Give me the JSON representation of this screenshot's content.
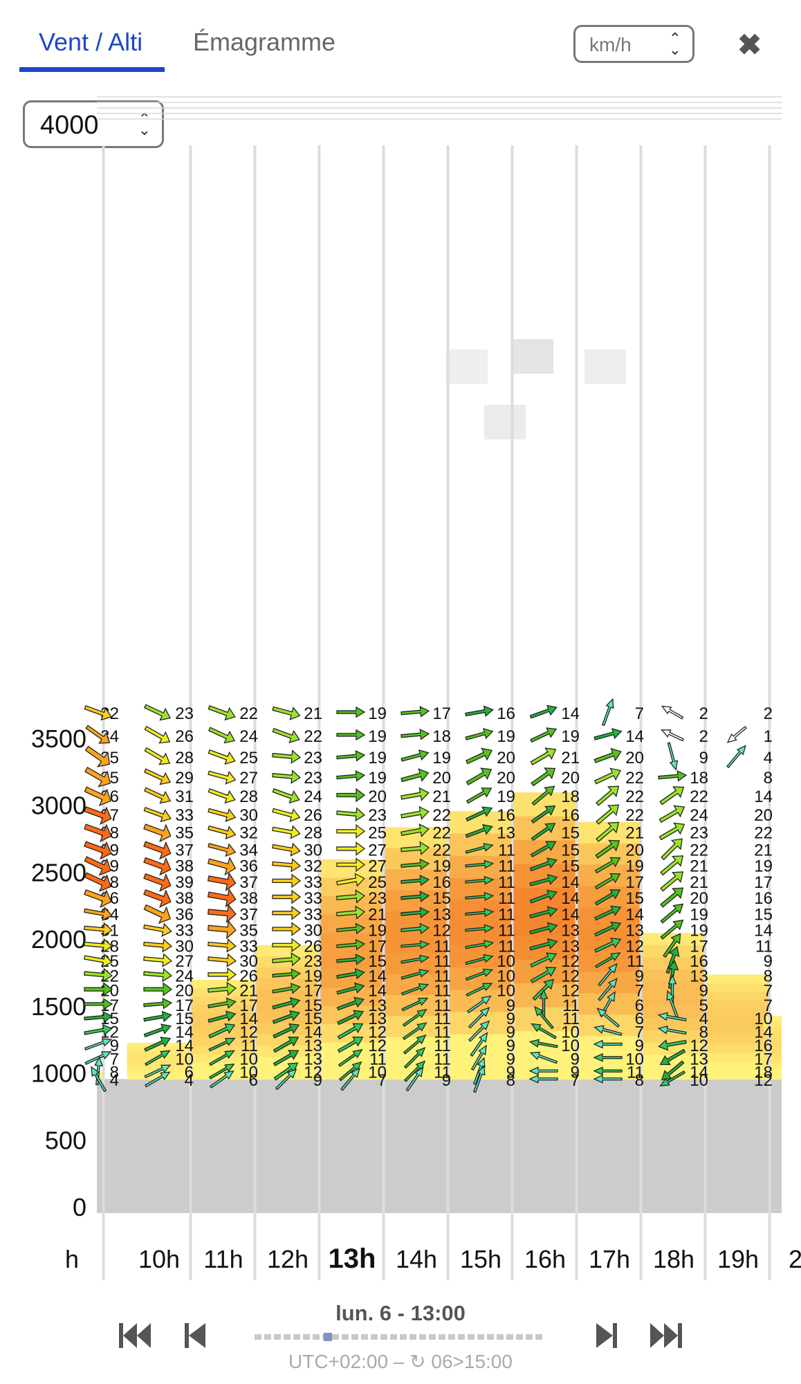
{
  "tabs": [
    {
      "label": "Vent / Alti",
      "active": true
    },
    {
      "label": "Émagramme",
      "active": false
    }
  ],
  "unit_select": {
    "value": "km/h"
  },
  "altitude_select": {
    "value": "4000"
  },
  "close_icon": "close-icon",
  "footer": {
    "date_label": "lun. 6 - 13:00",
    "tz_label": "UTC+02:00 – ↻ 06>15:00"
  },
  "colors": {
    "accent": "#1c47c9",
    "ground": "#cccccc",
    "thermal_low": "#fff27a",
    "thermal_high": "#f4822b"
  },
  "chart_data": {
    "type": "heatmap",
    "y_ticks": [
      "3500",
      "3000",
      "2500",
      "2000",
      "1500",
      "1000",
      "500",
      "0"
    ],
    "x_labels": [
      "h",
      "10h",
      "11h",
      "12h",
      "13h",
      "14h",
      "15h",
      "16h",
      "17h",
      "18h",
      "19h",
      "2"
    ],
    "current_hour": "13h",
    "ground_altitude": 960,
    "thermal_tops": [
      1020,
      1230,
      1700,
      1960,
      2600,
      2840,
      2960,
      3100,
      2880,
      2050,
      1740,
      1430
    ],
    "levels": [
      {
        "alt": 3700,
        "speeds": [
          32,
          23,
          22,
          21,
          19,
          17,
          16,
          14,
          7,
          2,
          2
        ],
        "dirs": [
          290,
          295,
          290,
          285,
          270,
          265,
          260,
          250,
          200,
          120
        ]
      },
      {
        "alt": 3530,
        "speeds": [
          34,
          26,
          24,
          22,
          19,
          18,
          19,
          19,
          14,
          2,
          1
        ],
        "dirs": [
          305,
          300,
          295,
          290,
          270,
          265,
          255,
          245,
          255,
          115,
          50
        ]
      },
      {
        "alt": 3370,
        "speeds": [
          35,
          28,
          25,
          23,
          19,
          19,
          20,
          21,
          20,
          9,
          4
        ],
        "dirs": [
          305,
          300,
          290,
          275,
          265,
          255,
          245,
          240,
          250,
          345,
          220
        ]
      },
      {
        "alt": 3220,
        "speeds": [
          35,
          29,
          27,
          23,
          19,
          20,
          20,
          20,
          22,
          18,
          8
        ],
        "dirs": [
          300,
          295,
          285,
          275,
          265,
          255,
          240,
          235,
          245,
          265
        ]
      },
      {
        "alt": 3080,
        "speeds": [
          36,
          31,
          28,
          24,
          20,
          21,
          19,
          18,
          22,
          22,
          14
        ],
        "dirs": [
          295,
          295,
          290,
          290,
          270,
          260,
          240,
          230,
          230,
          235
        ]
      },
      {
        "alt": 2940,
        "speeds": [
          37,
          33,
          30,
          26,
          23,
          22,
          16,
          16,
          22,
          24,
          20
        ],
        "dirs": [
          290,
          290,
          285,
          285,
          275,
          260,
          245,
          235,
          230,
          240
        ]
      },
      {
        "alt": 2810,
        "speeds": [
          38,
          35,
          32,
          28,
          25,
          22,
          13,
          15,
          21,
          23,
          22
        ],
        "dirs": [
          290,
          290,
          285,
          280,
          270,
          260,
          250,
          235,
          230,
          240
        ]
      },
      {
        "alt": 2680,
        "speeds": [
          39,
          37,
          34,
          30,
          27,
          22,
          11,
          15,
          20,
          22,
          21
        ],
        "dirs": [
          290,
          290,
          285,
          280,
          270,
          265,
          255,
          240,
          235,
          225
        ]
      },
      {
        "alt": 2560,
        "speeds": [
          39,
          38,
          36,
          32,
          27,
          19,
          11,
          15,
          19,
          21,
          19
        ],
        "dirs": [
          295,
          290,
          285,
          275,
          270,
          265,
          265,
          250,
          240,
          230
        ]
      },
      {
        "alt": 2440,
        "speeds": [
          38,
          39,
          37,
          33,
          25,
          16,
          11,
          14,
          17,
          21,
          17
        ],
        "dirs": [
          295,
          290,
          280,
          270,
          260,
          265,
          265,
          255,
          240,
          230
        ]
      },
      {
        "alt": 2320,
        "speeds": [
          36,
          38,
          38,
          33,
          23,
          15,
          11,
          14,
          15,
          20,
          16
        ],
        "dirs": [
          290,
          290,
          280,
          270,
          265,
          265,
          265,
          250,
          240,
          230
        ]
      },
      {
        "alt": 2200,
        "speeds": [
          34,
          36,
          37,
          33,
          21,
          13,
          11,
          14,
          14,
          19,
          15
        ],
        "dirs": [
          280,
          295,
          275,
          270,
          265,
          265,
          265,
          255,
          245,
          230
        ]
      },
      {
        "alt": 2080,
        "speeds": [
          31,
          33,
          35,
          30,
          19,
          12,
          11,
          13,
          13,
          19,
          14
        ],
        "dirs": [
          275,
          280,
          275,
          270,
          265,
          265,
          265,
          255,
          245,
          230
        ]
      },
      {
        "alt": 1960,
        "speeds": [
          28,
          30,
          33,
          26,
          17,
          11,
          11,
          13,
          12,
          17,
          11
        ],
        "dirs": [
          275,
          275,
          275,
          270,
          265,
          265,
          260,
          255,
          245,
          215
        ]
      },
      {
        "alt": 1850,
        "speeds": [
          25,
          27,
          30,
          23,
          15,
          11,
          10,
          12,
          11,
          16,
          9
        ],
        "dirs": [
          280,
          275,
          275,
          265,
          265,
          260,
          255,
          245,
          240,
          200
        ]
      },
      {
        "alt": 1740,
        "speeds": [
          22,
          24,
          26,
          19,
          14,
          11,
          10,
          12,
          9,
          13,
          8
        ],
        "dirs": [
          275,
          275,
          270,
          265,
          260,
          255,
          250,
          240,
          220,
          190
        ]
      },
      {
        "alt": 1630,
        "speeds": [
          20,
          20,
          21,
          17,
          14,
          11,
          10,
          12,
          7,
          9,
          7
        ],
        "dirs": [
          270,
          270,
          265,
          260,
          255,
          250,
          245,
          225,
          220,
          180
        ]
      },
      {
        "alt": 1520,
        "speeds": [
          17,
          17,
          17,
          15,
          13,
          11,
          9,
          11,
          6,
          5,
          7
        ],
        "dirs": [
          270,
          265,
          260,
          255,
          250,
          245,
          235,
          180,
          210,
          160
        ]
      },
      {
        "alt": 1420,
        "speeds": [
          15,
          15,
          14,
          15,
          13,
          11,
          9,
          11,
          6,
          4,
          10
        ],
        "dirs": [
          265,
          260,
          255,
          250,
          245,
          235,
          225,
          140,
          130,
          100
        ]
      },
      {
        "alt": 1320,
        "speeds": [
          12,
          14,
          12,
          14,
          12,
          11,
          9,
          10,
          7,
          8,
          14
        ],
        "dirs": [
          260,
          250,
          245,
          245,
          240,
          235,
          225,
          120,
          105,
          100
        ]
      },
      {
        "alt": 1220,
        "speeds": [
          9,
          14,
          11,
          13,
          12,
          11,
          9,
          10,
          9,
          12,
          16
        ],
        "dirs": [
          250,
          245,
          245,
          240,
          240,
          230,
          215,
          100,
          90,
          80
        ]
      },
      {
        "alt": 1120,
        "speeds": [
          7,
          10,
          10,
          13,
          11,
          11,
          9,
          9,
          10,
          13,
          17
        ],
        "dirs": [
          245,
          240,
          240,
          240,
          235,
          225,
          210,
          110,
          90,
          60
        ]
      },
      {
        "alt": 1020,
        "speeds": [
          8,
          6,
          10,
          12,
          10,
          11,
          9,
          9,
          11,
          14,
          18
        ],
        "dirs": [
          185,
          245,
          240,
          235,
          230,
          225,
          200,
          90,
          90,
          50
        ]
      },
      {
        "alt": 960,
        "speeds": [
          4,
          4,
          6,
          9,
          7,
          9,
          8,
          7,
          8,
          10,
          12
        ],
        "dirs": [
          150,
          240,
          235,
          225,
          220,
          215,
          200,
          90,
          90,
          60
        ]
      }
    ]
  }
}
